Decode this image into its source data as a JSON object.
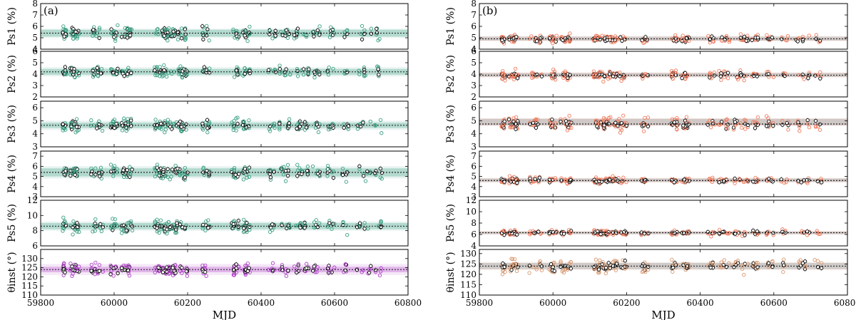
{
  "chart_data": [
    {
      "type": "scatter",
      "tag": "(a)",
      "xlabel": "MJD",
      "xlim": [
        59800,
        60800
      ],
      "xticks": [
        59800,
        60000,
        60200,
        60400,
        60600,
        60800
      ],
      "ground_color": "#3a9e82",
      "panels": [
        {
          "ylabel": "Ps1 (%)",
          "ylim": [
            4,
            8
          ],
          "yticks": [
            4,
            5,
            6,
            7,
            8
          ],
          "mean": 5.4,
          "band": [
            5.1,
            5.7
          ],
          "spread": 0.38,
          "outer_band": [
            5.0,
            5.8
          ],
          "color": "#3a9e82"
        },
        {
          "ylabel": "Ps2 (%)",
          "ylim": [
            2,
            6
          ],
          "yticks": [
            2,
            3,
            4,
            5,
            6
          ],
          "mean": 4.2,
          "band": [
            3.95,
            4.45
          ],
          "spread": 0.3,
          "outer_band": [
            3.8,
            4.6
          ],
          "color": "#3a9e82"
        },
        {
          "ylabel": "Ps3 (%)",
          "ylim": [
            3,
            6.5
          ],
          "yticks": [
            3,
            4,
            5,
            6
          ],
          "mean": 4.65,
          "band": [
            4.45,
            4.85
          ],
          "spread": 0.3,
          "outer_band": [
            4.3,
            5.0
          ],
          "color": "#3a9e82"
        },
        {
          "ylabel": "Ps4 (%)",
          "ylim": [
            3,
            7.5
          ],
          "yticks": [
            3,
            4,
            5,
            6,
            7
          ],
          "mean": 5.4,
          "band": [
            5.0,
            5.8
          ],
          "spread": 0.45,
          "outer_band": [
            4.8,
            6.0
          ],
          "color": "#3a9e82"
        },
        {
          "ylabel": "Ps5 (%)",
          "ylim": [
            6,
            12
          ],
          "yticks": [
            6,
            8,
            10,
            12
          ],
          "mean": 8.6,
          "band": [
            8.2,
            9.0
          ],
          "spread": 0.55,
          "outer_band": [
            8.0,
            9.2
          ],
          "color": "#3a9e82"
        },
        {
          "ylabel": "θinst (°)",
          "ylim": [
            110,
            135
          ],
          "yticks": [
            110,
            115,
            120,
            125,
            130
          ],
          "mean": 124,
          "band": [
            122.5,
            125.5
          ],
          "spread": 2.2,
          "outer_band": [
            121,
            127
          ],
          "color": "#b040c8"
        }
      ]
    },
    {
      "type": "scatter",
      "tag": "(b)",
      "xlabel": "MJD",
      "xlim": [
        59800,
        60800
      ],
      "xticks": [
        59800,
        60000,
        60200,
        60400,
        60600,
        60800
      ],
      "ground_color": "#f07a5c",
      "panels": [
        {
          "ylabel": "Ps1 (%)",
          "ylim": [
            4,
            8
          ],
          "yticks": [
            4,
            5,
            6,
            7,
            8
          ],
          "mean": 4.9,
          "band": [
            4.75,
            5.1
          ],
          "spread": 0.22,
          "outer_band": [
            4.7,
            5.15
          ],
          "color": "#f07a5c"
        },
        {
          "ylabel": "Ps2 (%)",
          "ylim": [
            2,
            6
          ],
          "yticks": [
            2,
            3,
            4,
            5,
            6
          ],
          "mean": 3.9,
          "band": [
            3.75,
            4.1
          ],
          "spread": 0.25,
          "outer_band": [
            3.7,
            4.15
          ],
          "color": "#f07a5c"
        },
        {
          "ylabel": "Ps3 (%)",
          "ylim": [
            3,
            6.5
          ],
          "yticks": [
            3,
            4,
            5,
            6
          ],
          "mean": 4.75,
          "band": [
            4.65,
            5.15
          ],
          "spread": 0.3,
          "outer_band": [
            4.6,
            5.2
          ],
          "color": "#f07a5c"
        },
        {
          "ylabel": "Ps4 (%)",
          "ylim": [
            3,
            7.5
          ],
          "yticks": [
            3,
            4,
            5,
            6,
            7
          ],
          "mean": 4.6,
          "band": [
            4.45,
            4.8
          ],
          "spread": 0.2,
          "outer_band": [
            4.4,
            4.85
          ],
          "color": "#f07a5c"
        },
        {
          "ylabel": "Ps5 (%)",
          "ylim": [
            4,
            12
          ],
          "yticks": [
            4,
            6,
            8,
            10,
            12
          ],
          "mean": 6.3,
          "band": [
            6.05,
            6.55
          ],
          "spread": 0.3,
          "outer_band": [
            6.0,
            6.6
          ],
          "color": "#f07a5c"
        },
        {
          "ylabel": "θinst (°)",
          "ylim": [
            110,
            132
          ],
          "yticks": [
            110,
            115,
            120,
            125,
            130
          ],
          "mean": 124,
          "band": [
            122.5,
            125.5
          ],
          "spread": 2.0,
          "outer_band": [
            122,
            126
          ],
          "color": "#d89870"
        }
      ]
    }
  ],
  "observation_groups": [
    [
      59860,
      59870,
      10
    ],
    [
      59880,
      59905,
      16
    ],
    [
      59935,
      59970,
      10
    ],
    [
      59990,
      60010,
      10
    ],
    [
      60020,
      60050,
      14
    ],
    [
      60110,
      60150,
      24
    ],
    [
      60150,
      60200,
      20
    ],
    [
      60240,
      60260,
      8
    ],
    [
      60320,
      60340,
      10
    ],
    [
      60350,
      60370,
      12
    ],
    [
      60420,
      60440,
      6
    ],
    [
      60450,
      60480,
      8
    ],
    [
      60490,
      60530,
      10
    ],
    [
      60540,
      60560,
      6
    ],
    [
      60580,
      60600,
      6
    ],
    [
      60620,
      60640,
      4
    ],
    [
      60660,
      60700,
      6
    ],
    [
      60710,
      60730,
      4
    ]
  ]
}
